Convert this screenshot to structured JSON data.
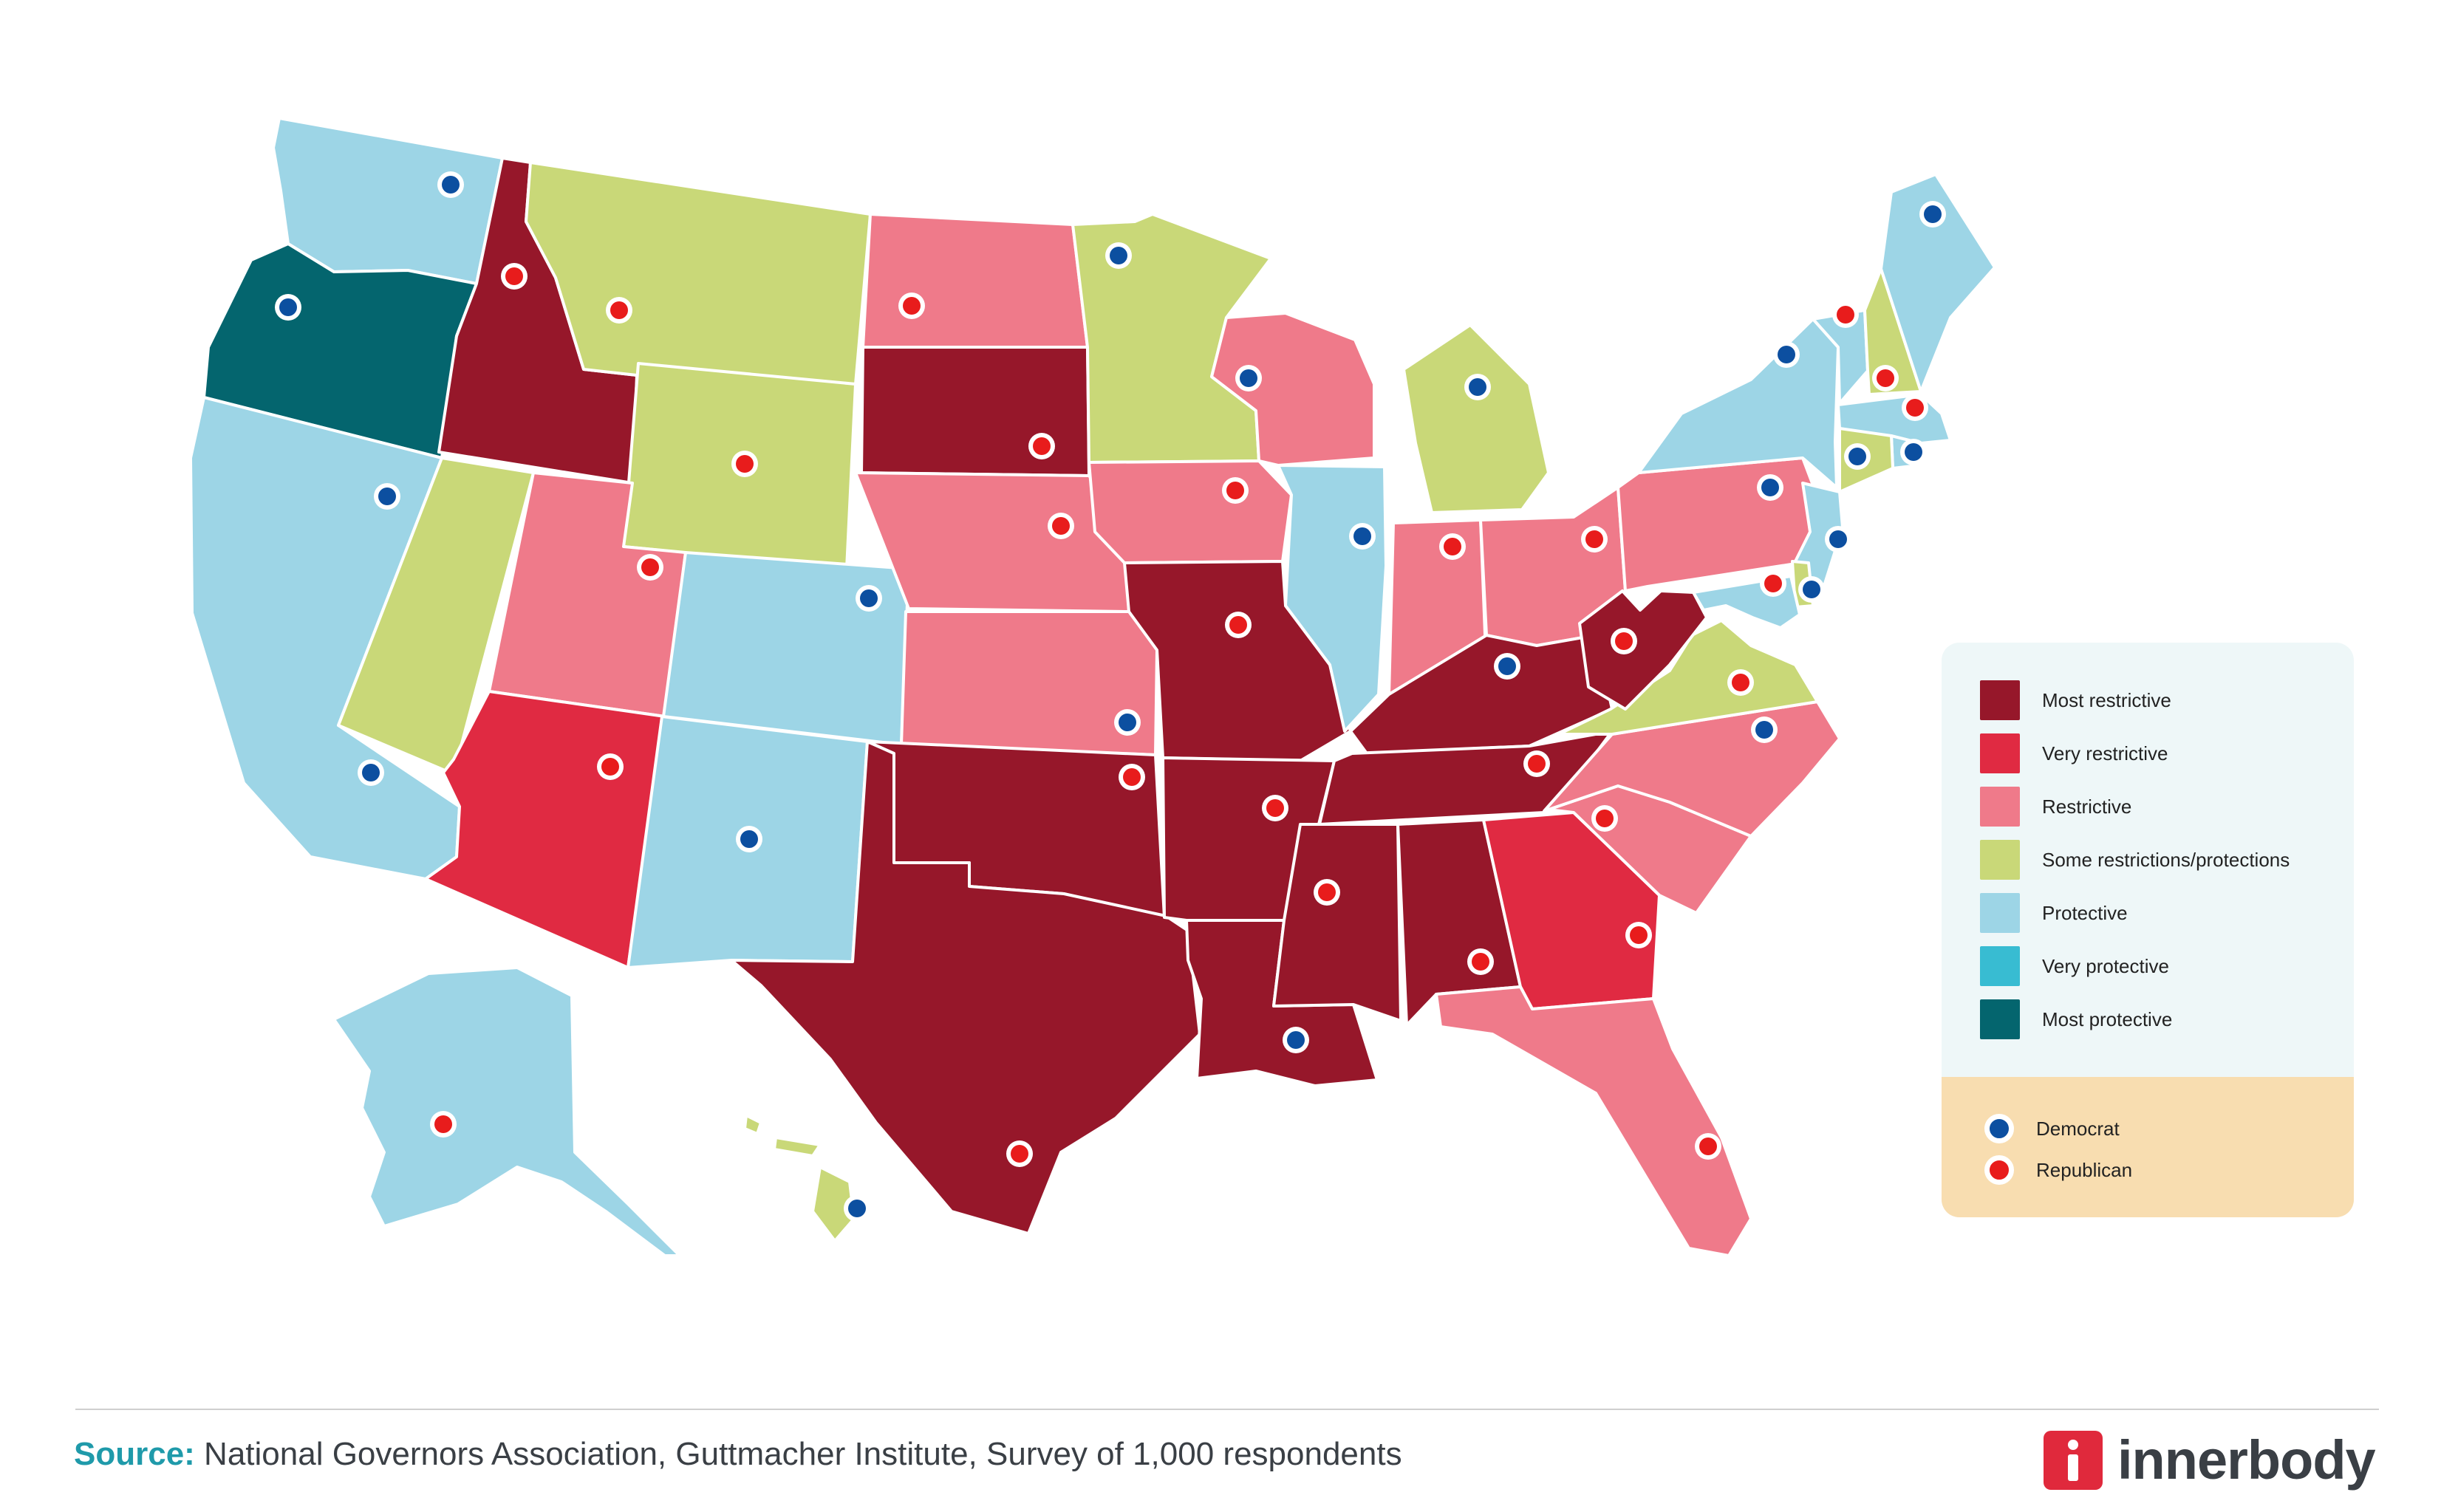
{
  "colors": {
    "most_restrictive": "#96172a",
    "very_restrictive": "#e02a42",
    "restrictive": "#ef7a8a",
    "some": "#c9d878",
    "protective": "#9dd5e6",
    "very_protective": "#38bcd2",
    "most_protective": "#04656e",
    "democrat": "#0c4fa0",
    "republican": "#e81c1c"
  },
  "legend": {
    "categories": [
      {
        "key": "most_restrictive",
        "label": "Most restrictive"
      },
      {
        "key": "very_restrictive",
        "label": "Very restrictive"
      },
      {
        "key": "restrictive",
        "label": "Restrictive"
      },
      {
        "key": "some",
        "label": "Some restrictions/protections"
      },
      {
        "key": "protective",
        "label": "Protective"
      },
      {
        "key": "very_protective",
        "label": "Very protective"
      },
      {
        "key": "most_protective",
        "label": "Most protective"
      }
    ],
    "parties": [
      {
        "key": "democrat",
        "label": "Democrat"
      },
      {
        "key": "republican",
        "label": "Republican"
      }
    ]
  },
  "states": {
    "WA": {
      "cat": "protective",
      "gov": "democrat"
    },
    "OR": {
      "cat": "most_protective",
      "gov": "democrat"
    },
    "CA": {
      "cat": "protective",
      "gov": "democrat"
    },
    "ID": {
      "cat": "most_restrictive",
      "gov": "republican"
    },
    "NV": {
      "cat": "some",
      "gov": "democrat"
    },
    "MT": {
      "cat": "some",
      "gov": "republican"
    },
    "WY": {
      "cat": "some",
      "gov": "republican"
    },
    "UT": {
      "cat": "restrictive",
      "gov": "republican"
    },
    "AZ": {
      "cat": "very_restrictive",
      "gov": "republican"
    },
    "CO": {
      "cat": "protective",
      "gov": "democrat"
    },
    "NM": {
      "cat": "protective",
      "gov": "democrat"
    },
    "ND": {
      "cat": "restrictive",
      "gov": "republican"
    },
    "SD": {
      "cat": "most_restrictive",
      "gov": "republican"
    },
    "NE": {
      "cat": "restrictive",
      "gov": "republican"
    },
    "KS": {
      "cat": "restrictive",
      "gov": "democrat"
    },
    "OK": {
      "cat": "most_restrictive",
      "gov": "republican"
    },
    "TX": {
      "cat": "most_restrictive",
      "gov": "republican"
    },
    "MN": {
      "cat": "some",
      "gov": "democrat"
    },
    "IA": {
      "cat": "restrictive",
      "gov": "republican"
    },
    "MO": {
      "cat": "most_restrictive",
      "gov": "republican"
    },
    "AR": {
      "cat": "most_restrictive",
      "gov": "republican"
    },
    "LA": {
      "cat": "most_restrictive",
      "gov": "democrat"
    },
    "WI": {
      "cat": "restrictive",
      "gov": "democrat"
    },
    "IL": {
      "cat": "protective",
      "gov": "democrat"
    },
    "MI": {
      "cat": "some",
      "gov": "democrat"
    },
    "IN": {
      "cat": "restrictive",
      "gov": "republican"
    },
    "OH": {
      "cat": "restrictive",
      "gov": "republican"
    },
    "KY": {
      "cat": "most_restrictive",
      "gov": "democrat"
    },
    "TN": {
      "cat": "most_restrictive",
      "gov": "republican"
    },
    "MS": {
      "cat": "most_restrictive",
      "gov": "republican"
    },
    "AL": {
      "cat": "most_restrictive",
      "gov": "republican"
    },
    "GA": {
      "cat": "very_restrictive",
      "gov": "republican"
    },
    "FL": {
      "cat": "restrictive",
      "gov": "republican"
    },
    "SC": {
      "cat": "restrictive",
      "gov": "republican"
    },
    "NC": {
      "cat": "restrictive",
      "gov": "democrat"
    },
    "VA": {
      "cat": "some",
      "gov": "republican"
    },
    "WV": {
      "cat": "most_restrictive",
      "gov": "republican"
    },
    "PA": {
      "cat": "restrictive",
      "gov": "democrat"
    },
    "NY": {
      "cat": "protective",
      "gov": "democrat"
    },
    "VT": {
      "cat": "protective",
      "gov": "republican"
    },
    "NH": {
      "cat": "some",
      "gov": "republican"
    },
    "ME": {
      "cat": "protective",
      "gov": "democrat"
    },
    "MA": {
      "cat": "protective",
      "gov": "republican"
    },
    "RI": {
      "cat": "protective",
      "gov": "democrat"
    },
    "CT": {
      "cat": "some",
      "gov": "democrat"
    },
    "NJ": {
      "cat": "protective",
      "gov": "democrat"
    },
    "DE": {
      "cat": "some",
      "gov": "democrat"
    },
    "MD": {
      "cat": "protective",
      "gov": "republican"
    },
    "AK": {
      "cat": "protective",
      "gov": "republican"
    },
    "HI": {
      "cat": "some",
      "gov": "democrat"
    }
  },
  "footer": {
    "source_key": "Source:",
    "source_text": " National Governors Association, Guttmacher Institute, Survey of 1,000 respondents"
  },
  "brand": {
    "name": "innerbody"
  }
}
